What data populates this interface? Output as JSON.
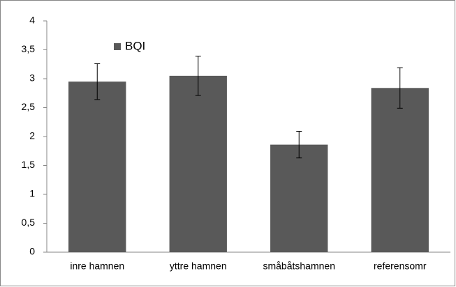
{
  "chart_data": {
    "type": "bar",
    "categories": [
      "inre hamnen",
      "yttre hamnen",
      "småbåtshamnen",
      "referensomr"
    ],
    "series": [
      {
        "name": "BQI",
        "color": "#595959",
        "values": [
          2.95,
          3.05,
          1.86,
          2.84
        ],
        "errors": [
          0.31,
          0.34,
          0.23,
          0.35
        ]
      }
    ],
    "ylim": [
      0,
      4
    ],
    "yticks": [
      0,
      {
        "value": 0.5,
        "label": "0,5"
      },
      1,
      {
        "value": 1.5,
        "label": "1,5"
      },
      2,
      {
        "value": 2.5,
        "label": "2,5"
      },
      3,
      {
        "value": 3.5,
        "label": "3,5"
      },
      4
    ],
    "legend": "top-left",
    "grid": false
  }
}
